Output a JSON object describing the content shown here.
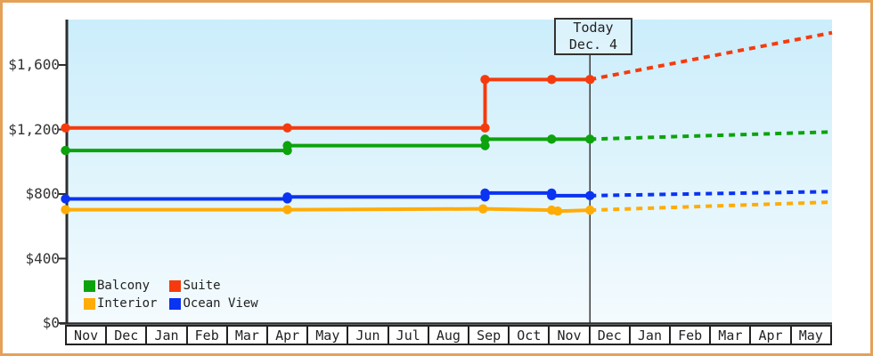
{
  "chart": {
    "today_box": {
      "line1": "Today",
      "line2": "Dec. 4"
    },
    "y_axis": {
      "tick_labels": [
        "$1,600",
        "$1,200",
        "$800",
        "$400",
        "$0"
      ],
      "tick_values": [
        1600,
        1200,
        800,
        400,
        0
      ]
    },
    "x_axis": {
      "month_labels": [
        "Nov",
        "Dec",
        "Jan",
        "Feb",
        "Mar",
        "Apr",
        "May",
        "Jun",
        "Jul",
        "Aug",
        "Sep",
        "Oct",
        "Nov",
        "Dec",
        "Jan",
        "Feb",
        "Mar",
        "Apr",
        "May"
      ]
    },
    "legend": {
      "items": [
        {
          "id": "balcony",
          "label": "Balcony",
          "color": "#0CA30C"
        },
        {
          "id": "suite",
          "label": "Suite",
          "color": "#F53B0E"
        },
        {
          "id": "interior",
          "label": "Interior",
          "color": "#FFAC07"
        },
        {
          "id": "ocean-view",
          "label": "Ocean View",
          "color": "#0B33F2"
        }
      ]
    },
    "colors": {
      "frame_border": "#E5A157",
      "plot_bg_top": "#CBEDFB",
      "plot_bg_bottom": "#F4FBFE",
      "axis": "#2E2E2E",
      "today_line": "#3A3A3A",
      "text": "#222222"
    }
  },
  "chart_data": {
    "type": "line",
    "title": "",
    "x_unit": "month index (0 = Nov at left edge, 19 = right edge after May)",
    "x_tick_labels": [
      "Nov",
      "Dec",
      "Jan",
      "Feb",
      "Mar",
      "Apr",
      "May",
      "Jun",
      "Jul",
      "Aug",
      "Sep",
      "Oct",
      "Nov",
      "Dec",
      "Jan",
      "Feb",
      "Mar",
      "Apr",
      "May"
    ],
    "y_ticks": [
      0,
      400,
      800,
      1200,
      1600
    ],
    "y_tick_labels": [
      "$0",
      "$400",
      "$800",
      "$1,200",
      "$1,600"
    ],
    "ylim": [
      0,
      1880
    ],
    "grid": false,
    "legend_position": "bottom-left inside plot",
    "today_x": 13.0,
    "today_label": "Today Dec. 4",
    "series": [
      {
        "name": "Suite",
        "color": "#F53B0E",
        "solid_points": [
          [
            0,
            1210
          ],
          [
            5.5,
            1210
          ],
          [
            10.4,
            1210
          ],
          [
            10.4,
            1510
          ],
          [
            12.05,
            1510
          ],
          [
            13,
            1510
          ]
        ],
        "projected_points": [
          [
            13,
            1510
          ],
          [
            19,
            1800
          ]
        ]
      },
      {
        "name": "Balcony",
        "color": "#0CA30C",
        "solid_points": [
          [
            0,
            1070
          ],
          [
            5.5,
            1070
          ],
          [
            5.5,
            1100
          ],
          [
            10.4,
            1100
          ],
          [
            10.4,
            1140
          ],
          [
            12.05,
            1140
          ],
          [
            13,
            1140
          ]
        ],
        "projected_points": [
          [
            13,
            1140
          ],
          [
            19,
            1185
          ]
        ]
      },
      {
        "name": "Ocean View",
        "color": "#0B33F2",
        "solid_points": [
          [
            0,
            770
          ],
          [
            5.5,
            770
          ],
          [
            5.5,
            782
          ],
          [
            10.4,
            782
          ],
          [
            10.4,
            806
          ],
          [
            12.05,
            806
          ],
          [
            12.05,
            790
          ],
          [
            13,
            790
          ]
        ],
        "projected_points": [
          [
            13,
            790
          ],
          [
            19,
            815
          ]
        ]
      },
      {
        "name": "Interior",
        "color": "#FFAC07",
        "solid_points": [
          [
            0,
            703
          ],
          [
            5.5,
            703
          ],
          [
            10.35,
            708
          ],
          [
            12.05,
            700
          ],
          [
            12.2,
            694
          ],
          [
            13,
            700
          ]
        ],
        "projected_points": [
          [
            13,
            700
          ],
          [
            19,
            750
          ]
        ]
      }
    ]
  }
}
